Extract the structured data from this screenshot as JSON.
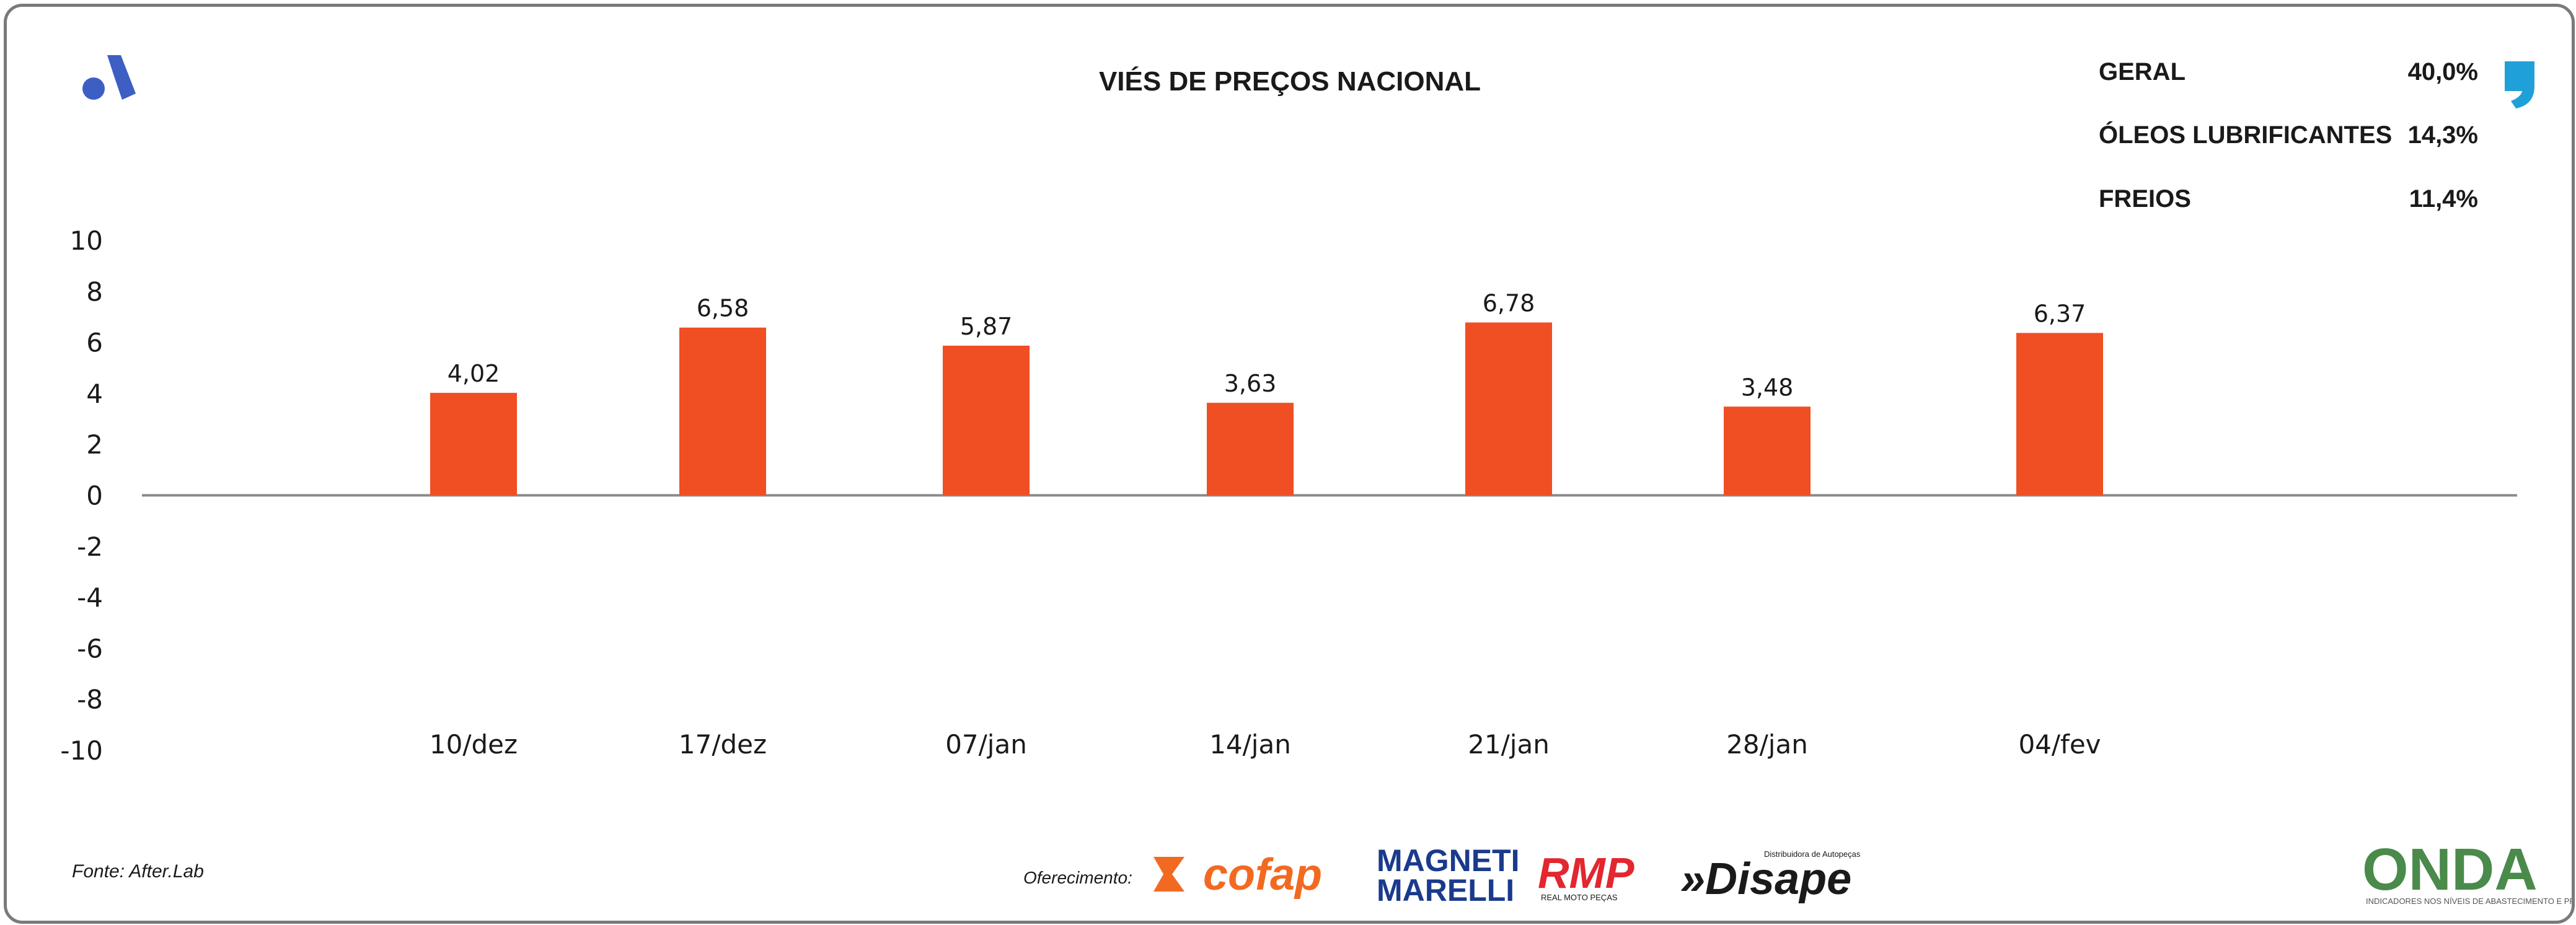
{
  "header": {
    "title": "VIÉS DE PREÇOS NACIONAL"
  },
  "stats": [
    {
      "label": "GERAL",
      "value": "40,0%"
    },
    {
      "label": "ÓLEOS LUBRIFICANTES",
      "value": "14,3%"
    },
    {
      "label": "FREIOS",
      "value": "11,4%"
    }
  ],
  "footer": {
    "source": "Fonte: After.Lab",
    "sponsor_label": "Oferecimento:",
    "sponsors": {
      "cofap": "cofap",
      "magneti_line1": "MAGNETI",
      "magneti_line2": "MARELLI",
      "rmp": "RMP",
      "rmp_sub": "REAL MOTO PEÇAS",
      "disape": "»Disape",
      "disape_sub": "Distribuidora de Autopeças"
    },
    "onda_logo": "ONDA",
    "onda_sub": "INDICADORES NOS NÍVEIS DE ABASTECIMENTO E PREÇO"
  },
  "colors": {
    "bar": "#f04e23",
    "axis": "#8a8a8a",
    "brand_blue": "#3d5fc4",
    "quote_blue": "#1fa0d8",
    "cofap_orange": "#f26a21",
    "magneti_blue": "#1a3a8c",
    "rmp_red": "#e3262f",
    "onda_green": "#4a8a4a",
    "onda_blue": "#2f5fa8"
  },
  "chart_data": {
    "type": "bar",
    "title": "VIÉS DE PREÇOS NACIONAL",
    "categories": [
      "10/dez",
      "17/dez",
      "07/jan",
      "14/jan",
      "21/jan",
      "28/jan",
      "04/fev"
    ],
    "values": [
      4.02,
      6.58,
      5.87,
      3.63,
      6.78,
      3.48,
      6.37
    ],
    "data_labels": [
      "4,02",
      "6,58",
      "5,87",
      "3,63",
      "6,78",
      "3,48",
      "6,37"
    ],
    "xlabel": "",
    "ylabel": "",
    "ylim": [
      -10,
      10
    ],
    "yticks": [
      10,
      8,
      6,
      4,
      2,
      0,
      -2,
      -4,
      -6,
      -8,
      -10
    ],
    "grid": false,
    "legend": "none"
  }
}
